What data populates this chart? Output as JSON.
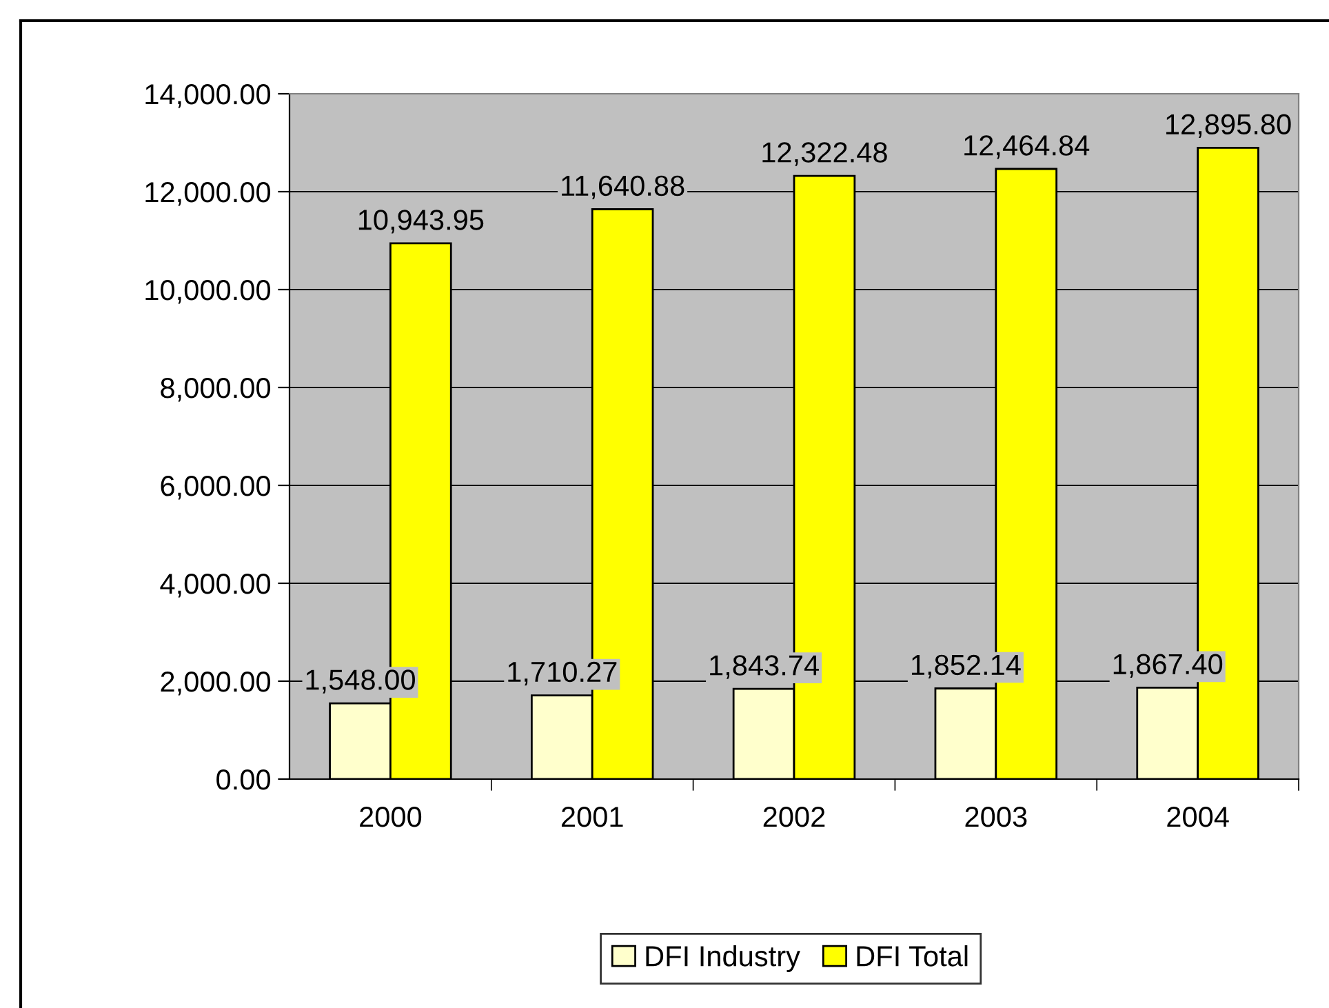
{
  "chart_data": {
    "type": "bar",
    "categories": [
      "2000",
      "2001",
      "2002",
      "2003",
      "2004"
    ],
    "series": [
      {
        "name": "DFI Industry",
        "color": "#ffffcc",
        "values": [
          1548.0,
          1710.27,
          1843.74,
          1852.14,
          1867.4
        ],
        "value_labels": [
          "1,548.00",
          "1,710.27",
          "1,843.74",
          "1,852.14",
          "1,867.40"
        ]
      },
      {
        "name": "DFI Total",
        "color": "#ffff00",
        "values": [
          10943.95,
          11640.88,
          12322.48,
          12464.84,
          12895.8
        ],
        "value_labels": [
          "10,943.95",
          "11,640.88",
          "12,322.48",
          "12,464.84",
          "12,895.80"
        ]
      }
    ],
    "ylim": [
      0,
      14000
    ],
    "yticks": [
      {
        "value": 0,
        "label": "0.00"
      },
      {
        "value": 2000,
        "label": "2,000.00"
      },
      {
        "value": 4000,
        "label": "4,000.00"
      },
      {
        "value": 6000,
        "label": "6,000.00"
      },
      {
        "value": 8000,
        "label": "8,000.00"
      },
      {
        "value": 10000,
        "label": "10,000.00"
      },
      {
        "value": 12000,
        "label": "12,000.00"
      },
      {
        "value": 14000,
        "label": "14,000.00"
      }
    ],
    "grid": "y",
    "legend": "bottom"
  }
}
